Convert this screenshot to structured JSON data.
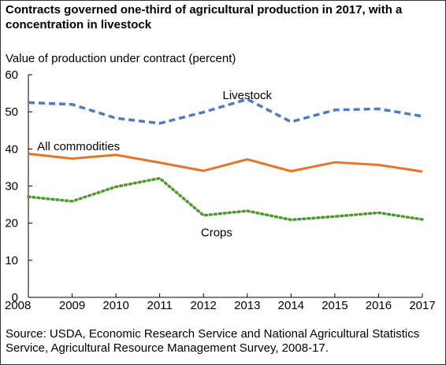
{
  "chart_data": {
    "type": "line",
    "title": "Contracts governed one-third of agricultural production in 2017, with a concentration in livestock",
    "ylabel": "Value of production under contract (percent)",
    "xlabel": "",
    "x": [
      2008,
      2009,
      2010,
      2011,
      2012,
      2013,
      2014,
      2015,
      2016,
      2017
    ],
    "x_tick_labels": [
      "2008",
      "2009",
      "2010",
      "2011",
      "2012",
      "2013",
      "2014",
      "2015",
      "2016",
      "2017"
    ],
    "ylim": [
      0,
      60
    ],
    "y_ticks": [
      0,
      10,
      20,
      30,
      40,
      50,
      60
    ],
    "y_tick_labels": [
      "0",
      "10",
      "20",
      "30",
      "40",
      "50",
      "60"
    ],
    "grid": false,
    "series": [
      {
        "name": "Livestock",
        "values": [
          52.5,
          52.0,
          48.3,
          46.9,
          49.9,
          53.4,
          47.3,
          50.5,
          50.8,
          48.8
        ],
        "color": "#4a7cc9",
        "style": "dashed"
      },
      {
        "name": "All commodities",
        "values": [
          38.7,
          37.4,
          38.4,
          36.3,
          34.1,
          37.2,
          34.0,
          36.4,
          35.7,
          33.9
        ],
        "color": "#e8742a",
        "style": "solid"
      },
      {
        "name": "Crops",
        "values": [
          27.1,
          25.9,
          29.8,
          32.1,
          22.1,
          23.3,
          20.9,
          21.8,
          22.8,
          21.0
        ],
        "color": "#4c9a2a",
        "style": "dotted"
      }
    ],
    "source": "Source: USDA, Economic Research Service and National Agricultural Statistics Service, Agricultural Resource Management Survey, 2008-17."
  }
}
